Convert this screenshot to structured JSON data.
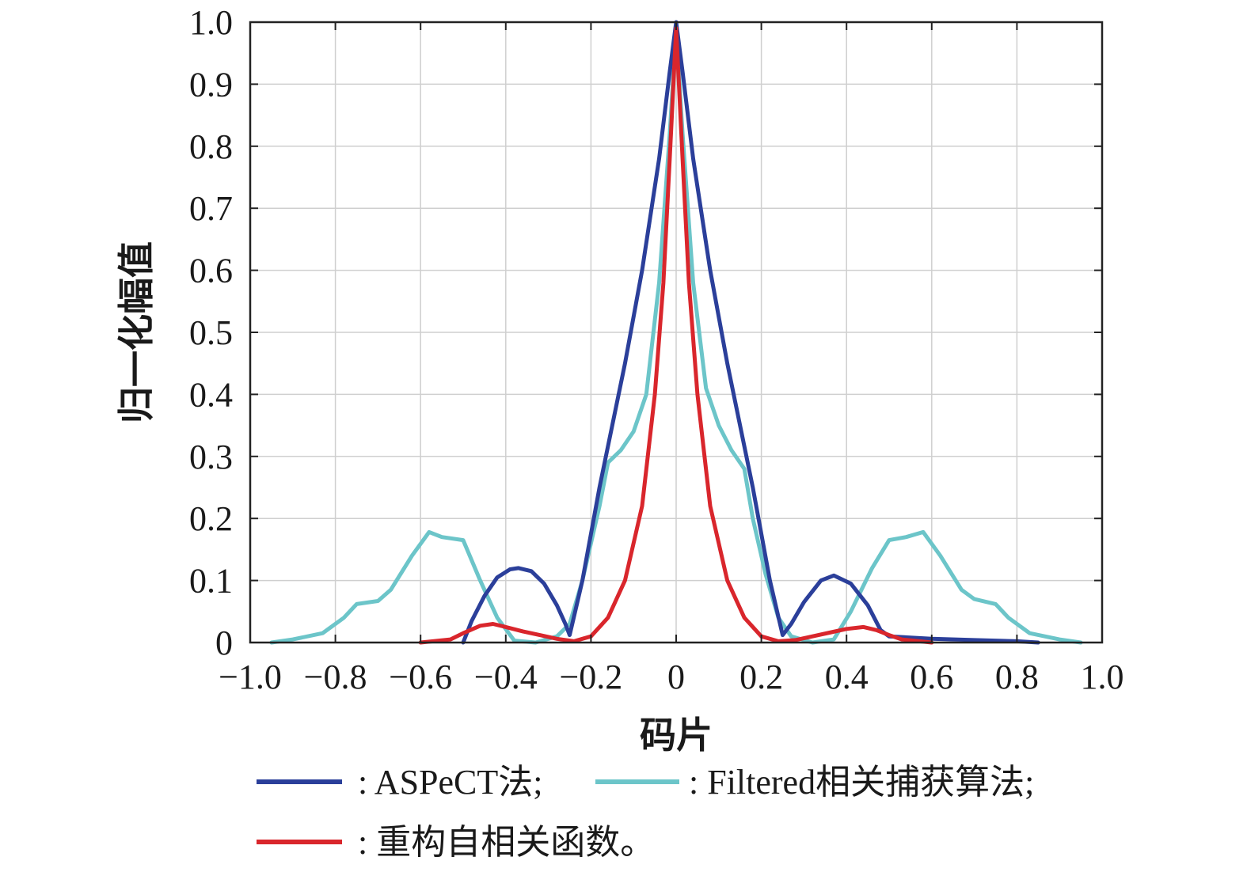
{
  "chart_data": {
    "type": "line",
    "xlabel": "码片",
    "ylabel": "归一化幅值",
    "xlim": [
      -1.0,
      1.0
    ],
    "ylim": [
      0,
      1.0
    ],
    "grid": true,
    "legend_position": "bottom",
    "x_tick_labels": [
      "−1.0",
      "−0.8",
      "−0.6",
      "−0.4",
      "−0.2",
      "0",
      "0.2",
      "0.4",
      "0.6",
      "0.8",
      "1.0"
    ],
    "y_tick_labels": [
      "0",
      "0.1",
      "0.2",
      "0.3",
      "0.4",
      "0.5",
      "0.6",
      "0.7",
      "0.8",
      "0.9",
      "1.0"
    ],
    "series": [
      {
        "name": ": ASPeCT法;",
        "color": "#2b3f9a",
        "points": [
          [
            -0.5,
            0.0
          ],
          [
            -0.48,
            0.035
          ],
          [
            -0.45,
            0.075
          ],
          [
            -0.42,
            0.105
          ],
          [
            -0.39,
            0.118
          ],
          [
            -0.37,
            0.12
          ],
          [
            -0.34,
            0.115
          ],
          [
            -0.31,
            0.095
          ],
          [
            -0.28,
            0.06
          ],
          [
            -0.26,
            0.03
          ],
          [
            -0.25,
            0.012
          ],
          [
            -0.22,
            0.1
          ],
          [
            -0.18,
            0.25
          ],
          [
            -0.12,
            0.45
          ],
          [
            -0.08,
            0.6
          ],
          [
            -0.04,
            0.78
          ],
          [
            -0.015,
            0.92
          ],
          [
            0.0,
            1.0
          ],
          [
            0.015,
            0.92
          ],
          [
            0.04,
            0.78
          ],
          [
            0.08,
            0.6
          ],
          [
            0.12,
            0.45
          ],
          [
            0.18,
            0.25
          ],
          [
            0.22,
            0.1
          ],
          [
            0.25,
            0.012
          ],
          [
            0.27,
            0.03
          ],
          [
            0.3,
            0.065
          ],
          [
            0.34,
            0.1
          ],
          [
            0.37,
            0.108
          ],
          [
            0.41,
            0.095
          ],
          [
            0.45,
            0.06
          ],
          [
            0.48,
            0.02
          ],
          [
            0.5,
            0.01
          ],
          [
            0.6,
            0.006
          ],
          [
            0.7,
            0.004
          ],
          [
            0.8,
            0.002
          ],
          [
            0.85,
            0.0
          ]
        ]
      },
      {
        "name": ": Filtered相关捕获算法;",
        "color": "#6cc5c9",
        "points": [
          [
            -0.95,
            0.0
          ],
          [
            -0.9,
            0.005
          ],
          [
            -0.83,
            0.015
          ],
          [
            -0.78,
            0.04
          ],
          [
            -0.75,
            0.062
          ],
          [
            -0.7,
            0.067
          ],
          [
            -0.67,
            0.085
          ],
          [
            -0.62,
            0.14
          ],
          [
            -0.58,
            0.178
          ],
          [
            -0.55,
            0.17
          ],
          [
            -0.5,
            0.165
          ],
          [
            -0.46,
            0.1
          ],
          [
            -0.42,
            0.04
          ],
          [
            -0.38,
            0.003
          ],
          [
            -0.33,
            0.0
          ],
          [
            -0.28,
            0.01
          ],
          [
            -0.25,
            0.03
          ],
          [
            -0.22,
            0.1
          ],
          [
            -0.18,
            0.22
          ],
          [
            -0.16,
            0.29
          ],
          [
            -0.13,
            0.31
          ],
          [
            -0.1,
            0.34
          ],
          [
            -0.07,
            0.4
          ],
          [
            -0.04,
            0.58
          ],
          [
            -0.015,
            0.82
          ],
          [
            0.0,
            0.99
          ],
          [
            0.015,
            0.82
          ],
          [
            0.04,
            0.58
          ],
          [
            0.07,
            0.41
          ],
          [
            0.1,
            0.35
          ],
          [
            0.13,
            0.31
          ],
          [
            0.16,
            0.28
          ],
          [
            0.18,
            0.2
          ],
          [
            0.21,
            0.11
          ],
          [
            0.24,
            0.04
          ],
          [
            0.27,
            0.01
          ],
          [
            0.32,
            0.0
          ],
          [
            0.37,
            0.005
          ],
          [
            0.41,
            0.05
          ],
          [
            0.46,
            0.12
          ],
          [
            0.5,
            0.165
          ],
          [
            0.54,
            0.17
          ],
          [
            0.58,
            0.178
          ],
          [
            0.62,
            0.14
          ],
          [
            0.67,
            0.085
          ],
          [
            0.7,
            0.07
          ],
          [
            0.75,
            0.062
          ],
          [
            0.78,
            0.04
          ],
          [
            0.83,
            0.015
          ],
          [
            0.9,
            0.005
          ],
          [
            0.95,
            0.0
          ]
        ]
      },
      {
        "name": ": 重构自相关函数。",
        "color": "#d9262c",
        "points": [
          [
            -0.6,
            0.0
          ],
          [
            -0.53,
            0.005
          ],
          [
            -0.5,
            0.015
          ],
          [
            -0.46,
            0.027
          ],
          [
            -0.43,
            0.03
          ],
          [
            -0.4,
            0.025
          ],
          [
            -0.36,
            0.018
          ],
          [
            -0.32,
            0.012
          ],
          [
            -0.28,
            0.006
          ],
          [
            -0.24,
            0.002
          ],
          [
            -0.2,
            0.01
          ],
          [
            -0.16,
            0.04
          ],
          [
            -0.12,
            0.1
          ],
          [
            -0.08,
            0.22
          ],
          [
            -0.05,
            0.4
          ],
          [
            -0.03,
            0.58
          ],
          [
            -0.015,
            0.78
          ],
          [
            0.0,
            0.99
          ],
          [
            0.015,
            0.78
          ],
          [
            0.03,
            0.58
          ],
          [
            0.05,
            0.4
          ],
          [
            0.08,
            0.22
          ],
          [
            0.12,
            0.1
          ],
          [
            0.16,
            0.04
          ],
          [
            0.2,
            0.01
          ],
          [
            0.24,
            0.002
          ],
          [
            0.28,
            0.004
          ],
          [
            0.32,
            0.01
          ],
          [
            0.36,
            0.016
          ],
          [
            0.4,
            0.022
          ],
          [
            0.44,
            0.025
          ],
          [
            0.47,
            0.02
          ],
          [
            0.5,
            0.012
          ],
          [
            0.53,
            0.005
          ],
          [
            0.6,
            0.0
          ]
        ]
      }
    ]
  }
}
